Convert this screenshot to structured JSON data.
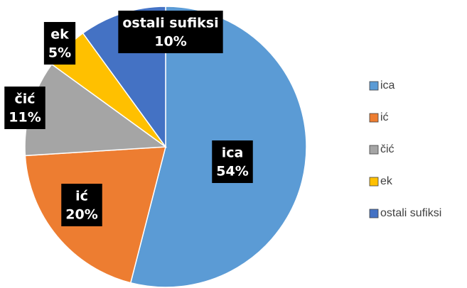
{
  "chart_data": {
    "type": "pie",
    "categories": [
      "ica",
      "ić",
      "čić",
      "ek",
      "ostali sufiksi"
    ],
    "values": [
      54,
      20,
      11,
      5,
      10
    ],
    "value_labels": [
      "54%",
      "20%",
      "11%",
      "5%",
      "10%"
    ],
    "colors": [
      "#5b9bd5",
      "#ed7d31",
      "#a5a5a5",
      "#ffc000",
      "#4472c4"
    ],
    "legend": "right"
  }
}
